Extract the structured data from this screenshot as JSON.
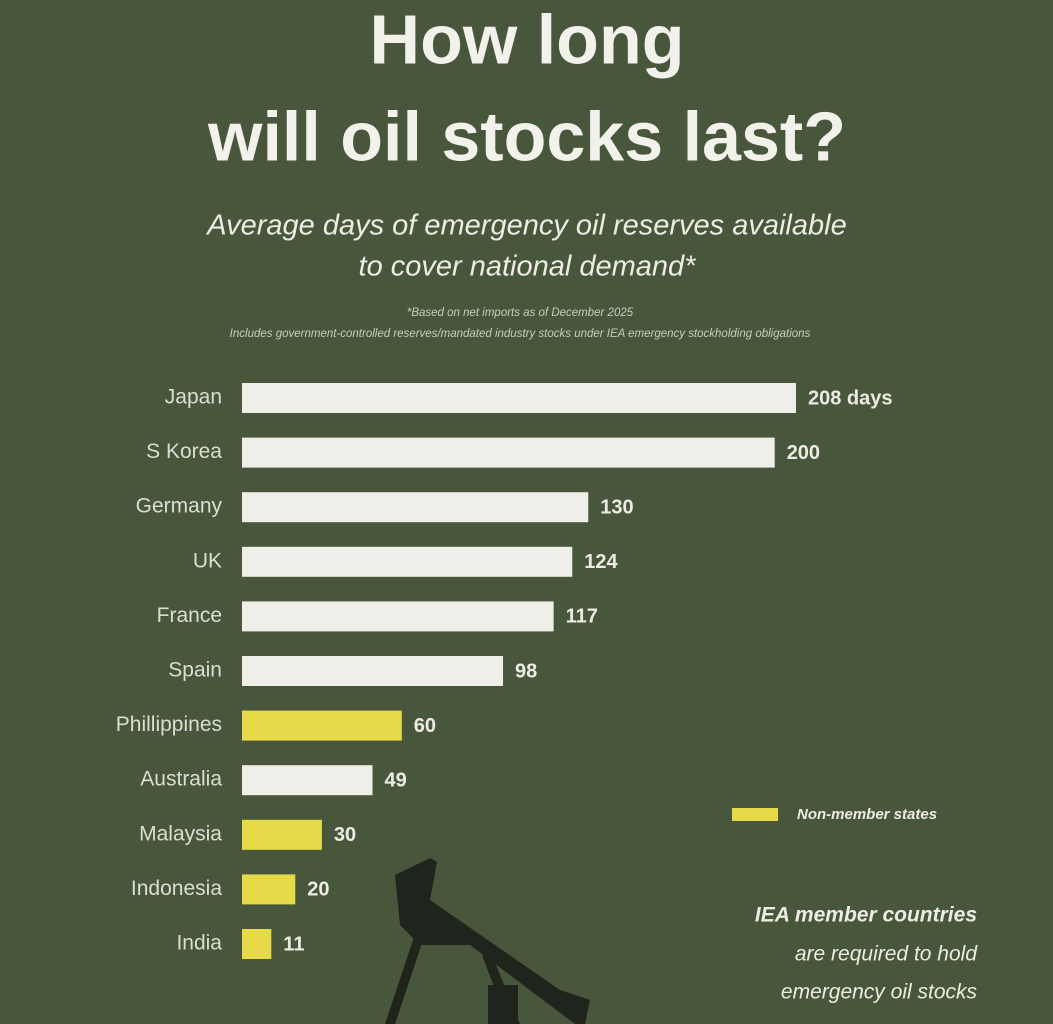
{
  "chart_data": {
    "type": "bar",
    "title": [
      "How long",
      "will oil stocks last?"
    ],
    "subtitle": [
      "Average days of emergency oil reserves available",
      "to cover national demand*"
    ],
    "notes": [
      "*Based on net imports as of December 2025",
      "Includes government-controlled reserves/mandated industry stocks under IEA emergency stockholding obligations"
    ],
    "categories": [
      "Japan",
      "S Korea",
      "Germany",
      "UK",
      "France",
      "Spain",
      "Phillippines",
      "Australia",
      "Malaysia",
      "Indonesia",
      "India"
    ],
    "values": [
      208,
      200,
      130,
      124,
      117,
      98,
      60,
      49,
      30,
      20,
      11
    ],
    "value_labels": [
      "208 days",
      "200",
      "130",
      "124",
      "117",
      "98",
      "60",
      "49",
      "30",
      "20",
      "11"
    ],
    "colors": [
      "#efeee9",
      "#efeee9",
      "#efeee9",
      "#efeee9",
      "#efeee9",
      "#efeee9",
      "#e6da48",
      "#efeee9",
      "#e6da48",
      "#e6da48",
      "#e6da48"
    ],
    "legend": {
      "label": "Non-member states",
      "color": "#e6da48"
    },
    "annotation": [
      "IEA member countries",
      "are required to hold",
      "emergency oil stocks"
    ]
  }
}
